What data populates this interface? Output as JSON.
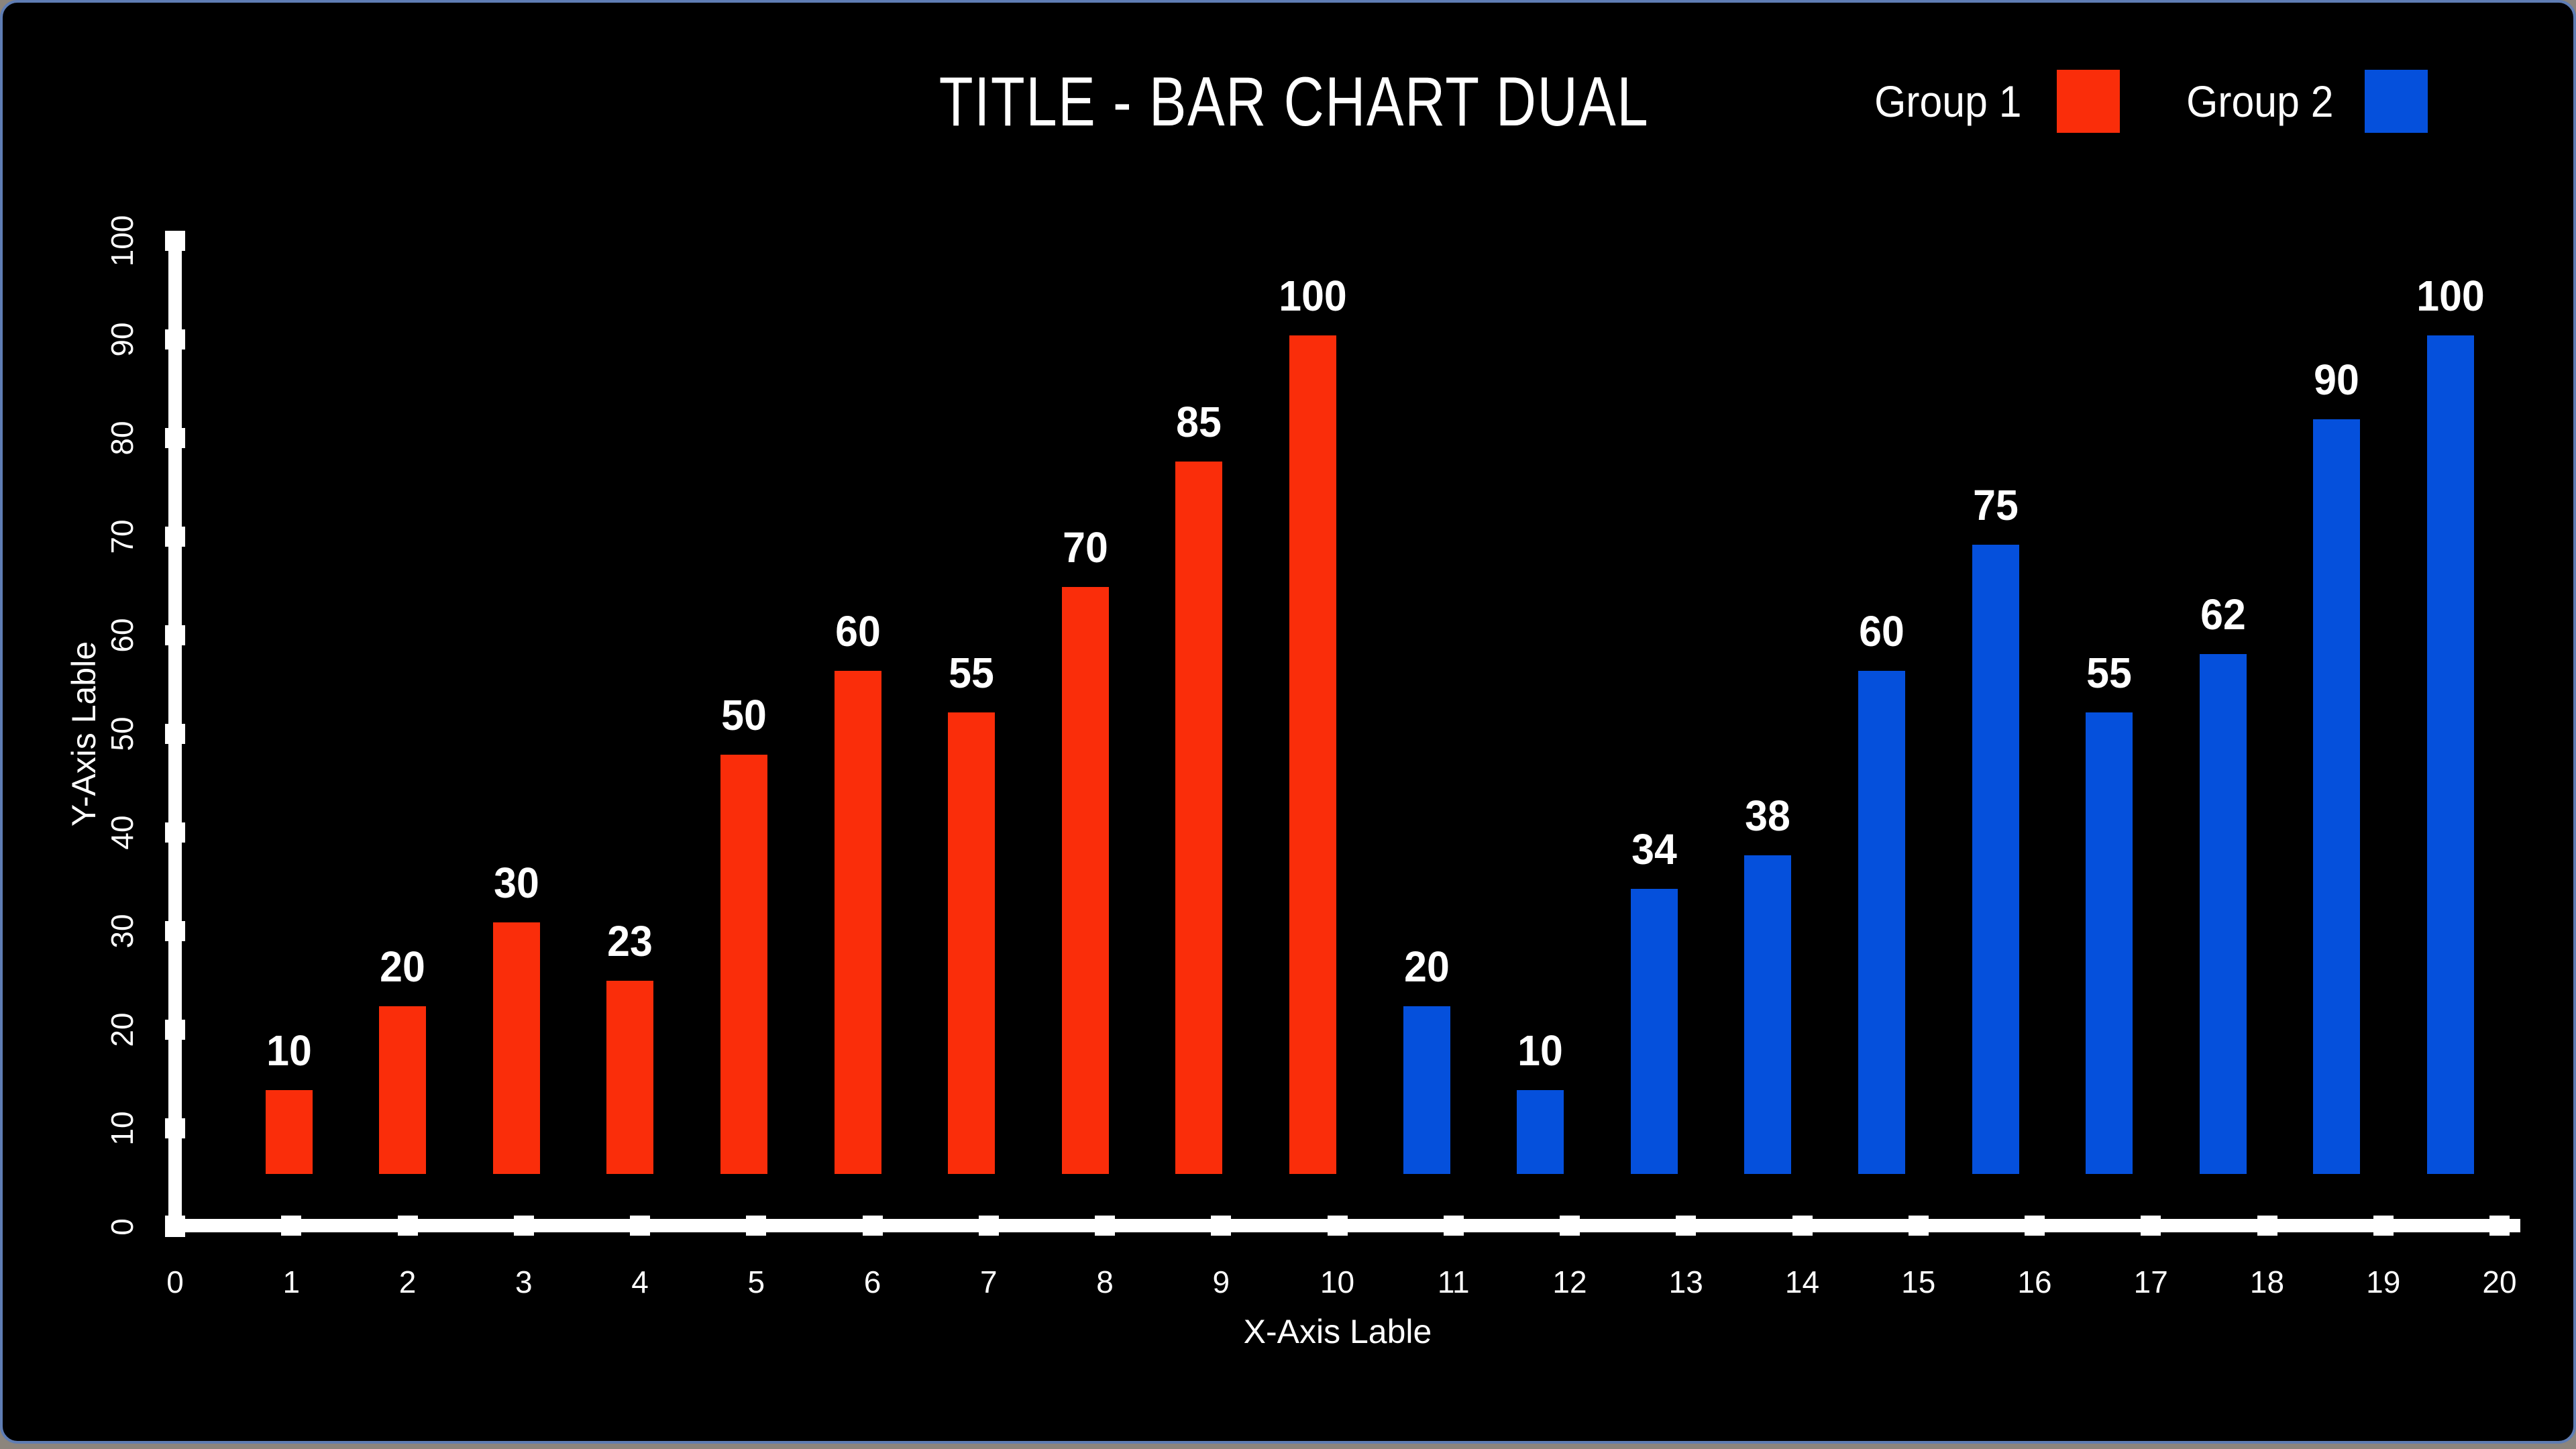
{
  "frame": {
    "background_color": "#000000",
    "border_color": "#5f7db4",
    "outer_strip_color": "#8c857d",
    "text_color": "#ffffff",
    "axis_color": "#ffffff"
  },
  "chart_data": {
    "type": "bar",
    "title": "TITLE - BAR CHART DUAL",
    "xlabel": "X-Axis Lable",
    "ylabel": "Y-Axis Lable",
    "xlim": [
      0,
      20
    ],
    "ylim": [
      0,
      100
    ],
    "x_ticks": [
      0,
      1,
      2,
      3,
      4,
      5,
      6,
      7,
      8,
      9,
      10,
      11,
      12,
      13,
      14,
      15,
      16,
      17,
      18,
      19,
      20
    ],
    "y_ticks": [
      0,
      10,
      20,
      30,
      40,
      50,
      60,
      70,
      80,
      90,
      100
    ],
    "grid": false,
    "legend_position": "top-right",
    "bar_value_labels_shown": true,
    "series": [
      {
        "name": "Group 1",
        "color": "#fa2d0a",
        "x": [
          1,
          2,
          3,
          4,
          5,
          6,
          7,
          8,
          9,
          10
        ],
        "values": [
          10,
          20,
          30,
          23,
          50,
          60,
          55,
          70,
          85,
          100
        ]
      },
      {
        "name": "Group 2",
        "color": "#0550dc",
        "x": [
          11,
          12,
          13,
          14,
          15,
          16,
          17,
          18,
          19,
          20
        ],
        "values": [
          20,
          10,
          34,
          38,
          60,
          75,
          55,
          62,
          90,
          100
        ]
      }
    ]
  }
}
